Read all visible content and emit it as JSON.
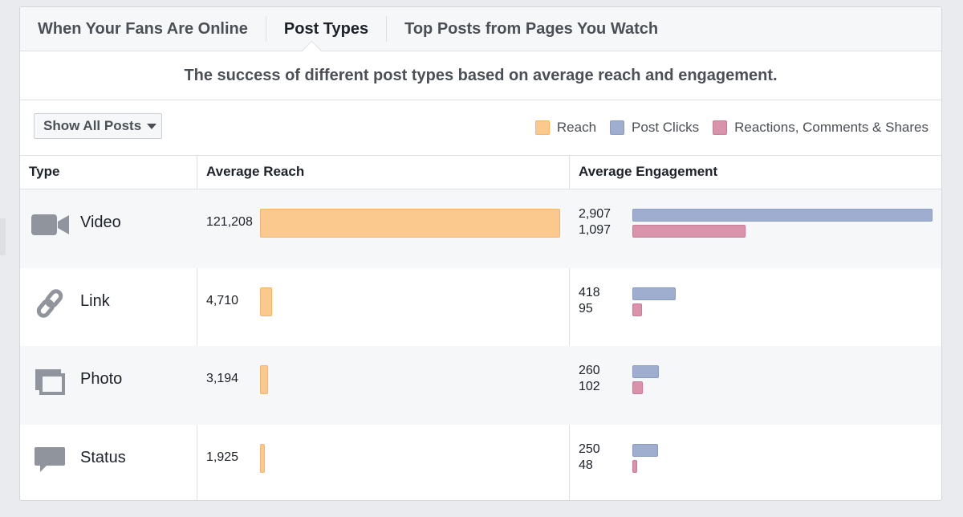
{
  "tabs": [
    {
      "label": "When Your Fans Are Online",
      "active": false
    },
    {
      "label": "Post Types",
      "active": true
    },
    {
      "label": "Top Posts from Pages You Watch",
      "active": false
    }
  ],
  "subtitle": "The success of different post types based on average reach and engagement.",
  "filter": {
    "label": "Show All Posts"
  },
  "legend": [
    {
      "label": "Reach",
      "color": "#fbc98e"
    },
    {
      "label": "Post Clicks",
      "color": "#9fadcf"
    },
    {
      "label": "Reactions, Comments & Shares",
      "color": "#d892a9"
    }
  ],
  "table": {
    "headers": {
      "type": "Type",
      "reach": "Average Reach",
      "engagement": "Average Engagement"
    },
    "rows": [
      {
        "type": "Video",
        "icon": "video-camera-icon",
        "reach": "121,208",
        "post_clicks": "2,907",
        "reactions_comments_shares": "1,097"
      },
      {
        "type": "Link",
        "icon": "chain-link-icon",
        "reach": "4,710",
        "post_clicks": "418",
        "reactions_comments_shares": "95"
      },
      {
        "type": "Photo",
        "icon": "photo-stack-icon",
        "reach": "3,194",
        "post_clicks": "260",
        "reactions_comments_shares": "102"
      },
      {
        "type": "Status",
        "icon": "speech-bubble-icon",
        "reach": "1,925",
        "post_clicks": "250",
        "reactions_comments_shares": "48"
      }
    ]
  },
  "chart_data": {
    "type": "bar",
    "categories": [
      "Video",
      "Link",
      "Photo",
      "Status"
    ],
    "series": [
      {
        "name": "Reach",
        "values": [
          121208,
          4710,
          3194,
          1925
        ]
      },
      {
        "name": "Post Clicks",
        "values": [
          2907,
          418,
          260,
          250
        ]
      },
      {
        "name": "Reactions, Comments & Shares",
        "values": [
          1097,
          95,
          102,
          48
        ]
      }
    ]
  }
}
